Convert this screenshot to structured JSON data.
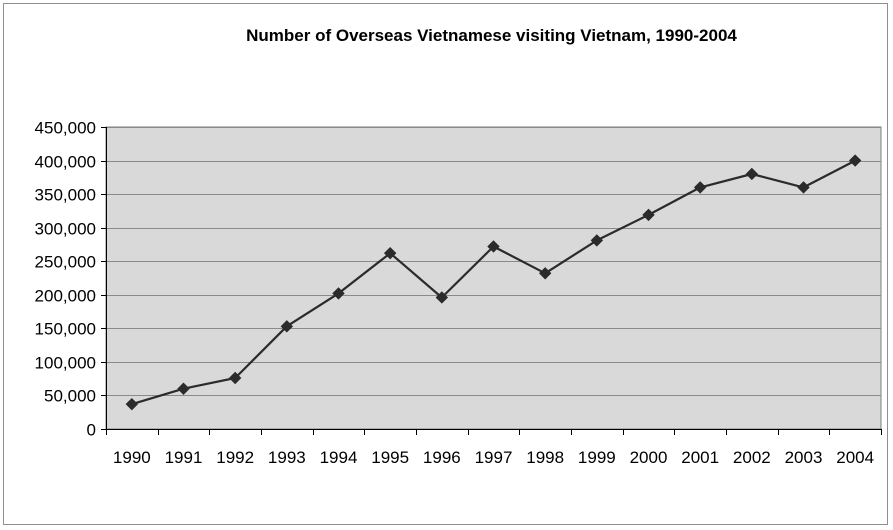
{
  "chart_data": {
    "type": "line",
    "title": "Number of Overseas Vietnamese visiting Vietnam, 1990-2004",
    "xlabel": "",
    "ylabel": "",
    "categories": [
      "1990",
      "1991",
      "1992",
      "1993",
      "1994",
      "1995",
      "1996",
      "1997",
      "1998",
      "1999",
      "2000",
      "2001",
      "2002",
      "2003",
      "2004"
    ],
    "series": [
      {
        "values": [
          37000,
          60000,
          76000,
          153000,
          202000,
          262000,
          196000,
          272000,
          232000,
          281000,
          319000,
          360000,
          380000,
          360000,
          400000
        ]
      }
    ],
    "ylim": [
      0,
      450000
    ],
    "yticks": [
      0,
      50000,
      100000,
      150000,
      200000,
      250000,
      300000,
      350000,
      400000,
      450000
    ],
    "ytick_labels": [
      "0",
      "50,000",
      "100,000",
      "150,000",
      "200,000",
      "250,000",
      "300,000",
      "350,000",
      "400,000",
      "450,000"
    ],
    "grid": true,
    "legend": "none",
    "colors": {
      "plot_background": "#d9d9d9",
      "gridline": "#8a8a8a",
      "line": "#2b2b2b",
      "marker": "#2b2b2b"
    },
    "marker": "diamond"
  }
}
